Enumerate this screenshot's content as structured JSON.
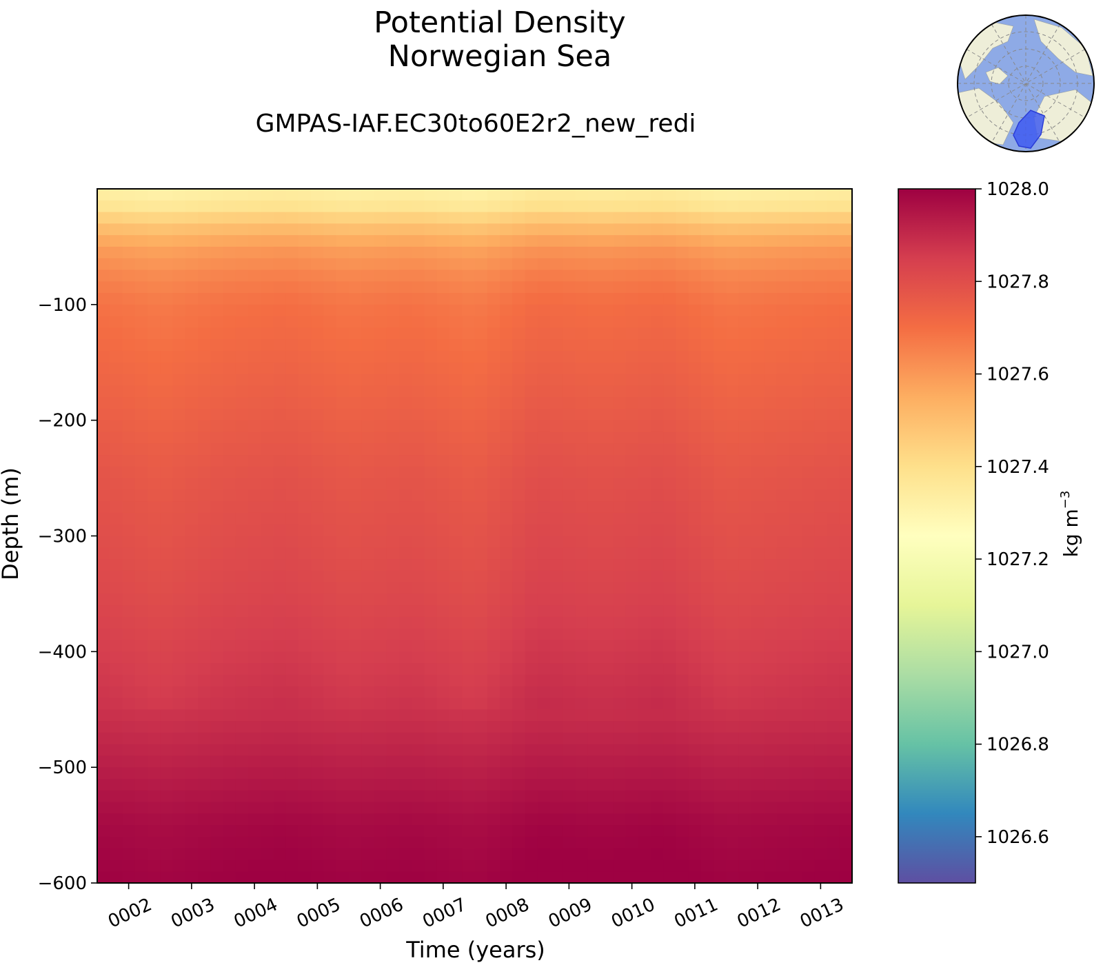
{
  "chart_data": {
    "type": "heatmap",
    "title": [
      "Potential Density",
      "Norwegian Sea"
    ],
    "subtitle": "GMPAS-IAF.EC30to60E2r2_new_redi",
    "xlabel": "Time (years)",
    "ylabel": "Depth (m)",
    "x_ticks": [
      "0002",
      "0003",
      "0004",
      "0005",
      "0006",
      "0007",
      "0008",
      "0009",
      "0010",
      "0011",
      "0012",
      "0013"
    ],
    "xlim": [
      1.5,
      13.5
    ],
    "y_ticks": [
      -100,
      -200,
      -300,
      -400,
      -500,
      -600
    ],
    "ylim": [
      -600,
      0
    ],
    "colorbar": {
      "label": "kg m",
      "label_superscript": "−3",
      "ticks": [
        "1028.0",
        "1027.8",
        "1027.6",
        "1027.4",
        "1027.2",
        "1027.0",
        "1026.8",
        "1026.6"
      ],
      "range": [
        1026.5,
        1028.0
      ],
      "colormap": "Spectral_r",
      "colors": [
        "#5e4fa2",
        "#3288bd",
        "#66c2a5",
        "#abdda4",
        "#e6f598",
        "#ffffbf",
        "#fee08b",
        "#fdae61",
        "#f46d43",
        "#d53e4f",
        "#9e0142"
      ]
    },
    "depth_levels": [
      0,
      -15,
      -30,
      -50,
      -75,
      -100,
      -150,
      -200,
      -250,
      -300,
      -350,
      -400,
      -450,
      -500,
      -550,
      -600
    ],
    "time_years": [
      1.5,
      2.5,
      3.5,
      4.5,
      5.5,
      6.5,
      7.5,
      8.5,
      9.5,
      10.5,
      11.5,
      12.5,
      13.5
    ],
    "density_profile": [
      1027.35,
      1027.4,
      1027.5,
      1027.6,
      1027.65,
      1027.69,
      1027.72,
      1027.75,
      1027.78,
      1027.8,
      1027.82,
      1027.85,
      1027.88,
      1027.93,
      1027.98,
      1028.0
    ],
    "year_anomaly": [
      0.0,
      -0.02,
      0.0,
      0.01,
      -0.01,
      0.0,
      -0.02,
      0.02,
      0.01,
      0.02,
      -0.01,
      0.0,
      0.01
    ]
  },
  "inset_map": {
    "type": "north-polar-stereographic",
    "highlighted_region": "Norwegian Sea",
    "colors": {
      "ocean": "#8eaae6",
      "land": "#eeeed8",
      "region": "#3f5cf0"
    }
  }
}
